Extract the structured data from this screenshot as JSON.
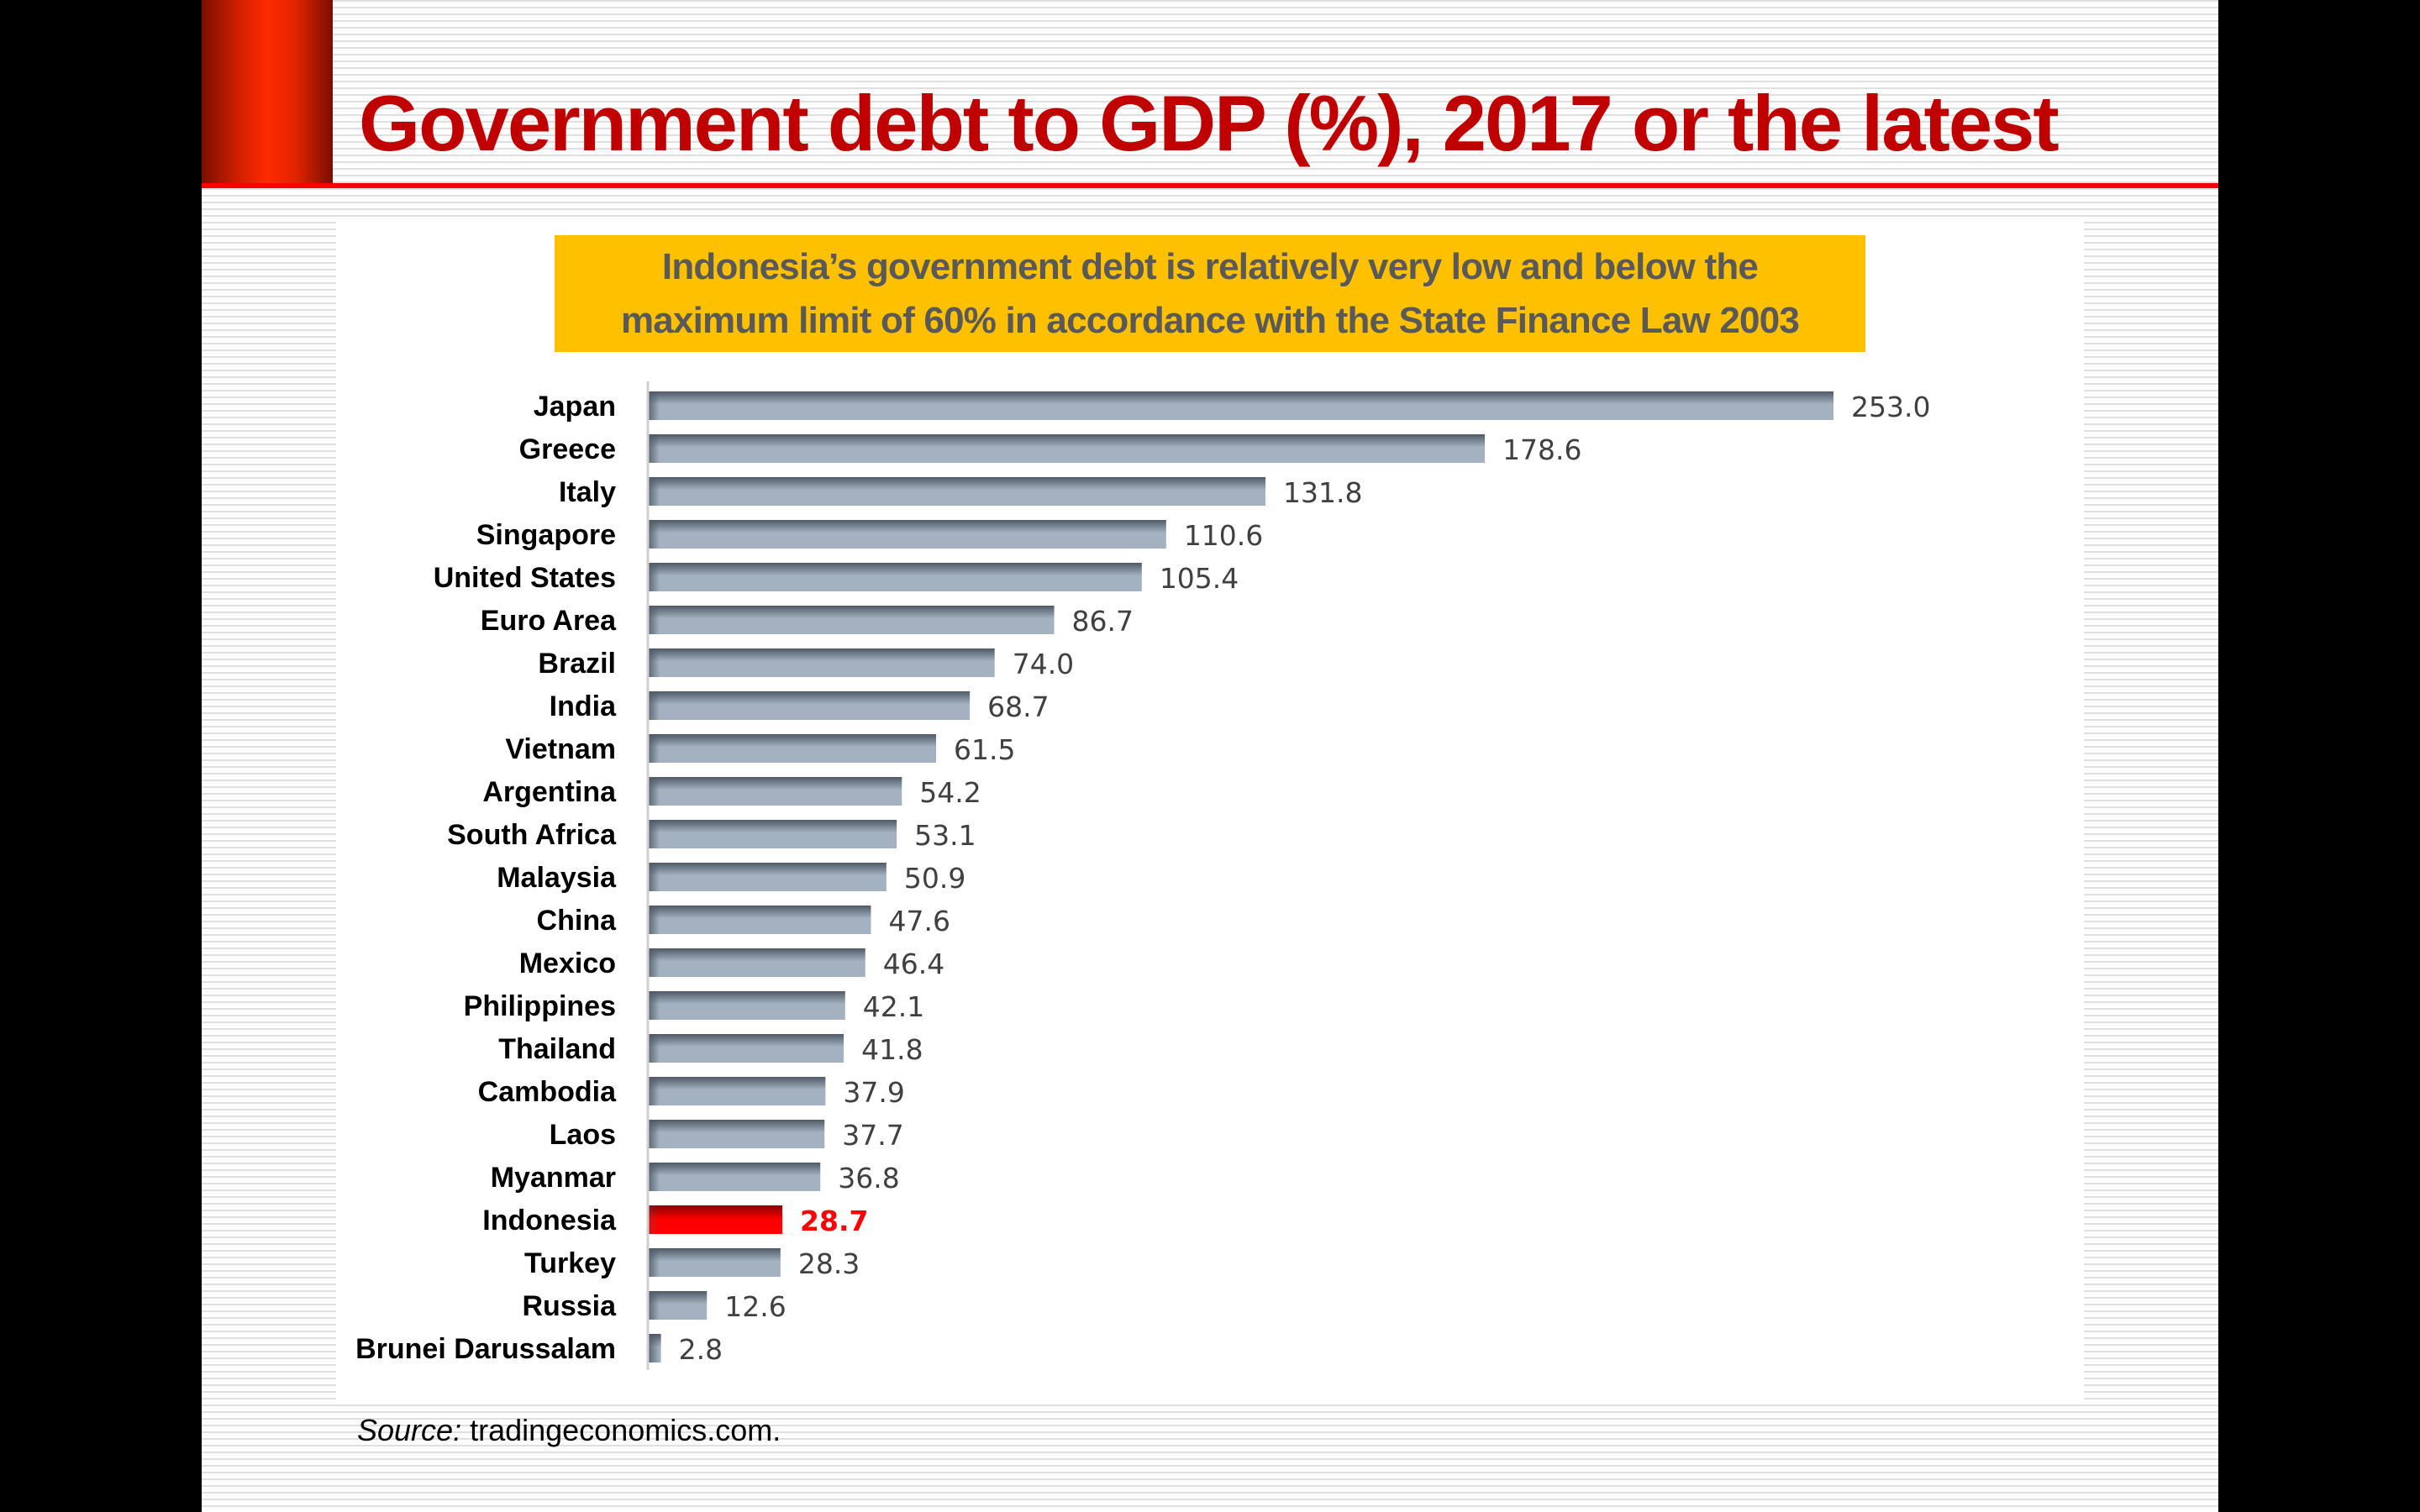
{
  "slide": {
    "title": "Government debt to GDP (%), 2017 or the latest",
    "callout_lines": [
      "Indonesia’s government debt is relatively very low and below the",
      "maximum limit of 60% in accordance with the State Finance Law 2003"
    ],
    "source_prefix": "Source:",
    "source_text": " tradingeconomics.com."
  },
  "colors": {
    "title": "#c00000",
    "accent_red": "#ff0000",
    "callout_bg": "#ffc000",
    "callout_text": "#595959",
    "bar_top": "#4f5a66",
    "bar_bottom": "#a3b1c0",
    "highlight_top": "#8b0000",
    "highlight_bottom": "#ff0000",
    "value_text": "#404040"
  },
  "chart_data": {
    "type": "bar",
    "orientation": "horizontal",
    "title": "Government debt to GDP (%), 2017 or the latest",
    "xlabel": "",
    "ylabel": "",
    "xlim": [
      0,
      253.0
    ],
    "grid": false,
    "legend": "none",
    "highlight": "Indonesia",
    "categories": [
      "Japan",
      "Greece",
      "Italy",
      "Singapore",
      "United States",
      "Euro Area",
      "Brazil",
      "India",
      "Vietnam",
      "Argentina",
      "South Africa",
      "Malaysia",
      "China",
      "Mexico",
      "Philippines",
      "Thailand",
      "Cambodia",
      "Laos",
      "Myanmar",
      "Indonesia",
      "Turkey",
      "Russia",
      "Brunei Darussalam"
    ],
    "values": [
      253.0,
      178.6,
      131.8,
      110.6,
      105.4,
      86.7,
      74.0,
      68.7,
      61.5,
      54.2,
      53.1,
      50.9,
      47.6,
      46.4,
      42.1,
      41.8,
      37.9,
      37.7,
      36.8,
      28.7,
      28.3,
      12.6,
      2.8
    ],
    "value_labels": [
      "253.0",
      "178.6",
      "131.8",
      "110.6",
      "105.4",
      "86.7",
      "74.0",
      "68.7",
      "61.5",
      "54.2",
      "53.1",
      "50.9",
      "47.6",
      "46.4",
      "42.1",
      "41.8",
      "37.9",
      "37.7",
      "36.8",
      "28.7",
      "28.3",
      "12.6",
      "2.8"
    ]
  }
}
